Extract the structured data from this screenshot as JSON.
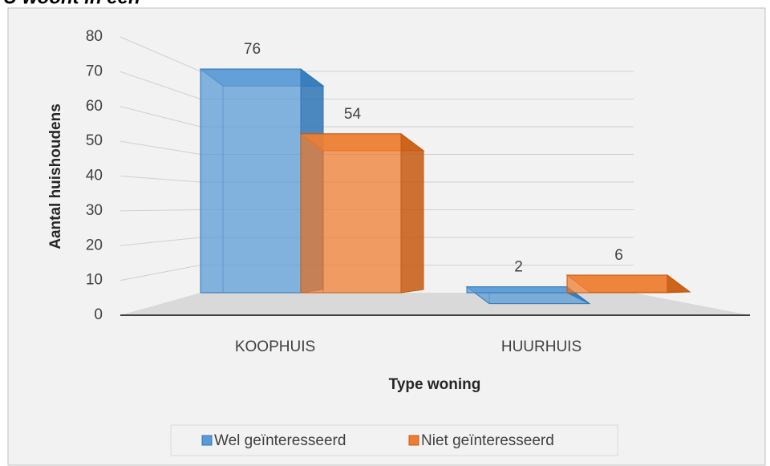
{
  "chart_data": {
    "type": "bar3d",
    "title": "U woont in een",
    "x_label": "Type woning",
    "y_label": "Aantal huishoudens",
    "categories": [
      "KOOPHUIS",
      "HUURHUIS"
    ],
    "series": [
      {
        "name": "Wel geïnteresseerd",
        "color": "#5b9bd5",
        "stroke": "#2e75b6",
        "values": [
          76,
          2
        ]
      },
      {
        "name": "Niet geïnteresseerd",
        "color": "#ed7d31",
        "stroke": "#c55a11",
        "values": [
          54,
          6
        ]
      }
    ],
    "ylim": [
      0,
      80
    ],
    "yticks": [
      0,
      10,
      20,
      30,
      40,
      50,
      60,
      70,
      80
    ],
    "grid": true,
    "legend": "bottom"
  }
}
